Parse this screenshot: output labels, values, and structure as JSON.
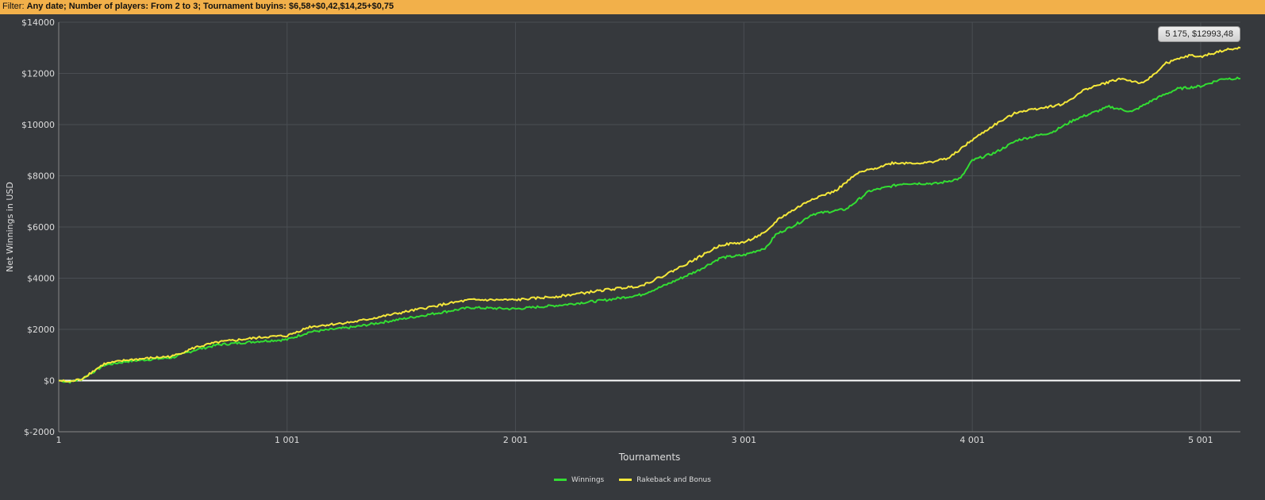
{
  "filter": {
    "label": "Filter:",
    "text": "Any date; Number of players: From 2 to 3; Tournament buyins: $6,58+$0,42,$14,25+$0,75"
  },
  "tooltip": "5 175, $12993,48",
  "chart_data": {
    "type": "line",
    "xlabel": "Tournaments",
    "ylabel": "Net Winnings in USD",
    "xlim": [
      1,
      5175
    ],
    "ylim": [
      -2000,
      14000
    ],
    "xticks": [
      {
        "v": 1,
        "label": "1"
      },
      {
        "v": 1001,
        "label": "1 001"
      },
      {
        "v": 2001,
        "label": "2 001"
      },
      {
        "v": 3001,
        "label": "3 001"
      },
      {
        "v": 4001,
        "label": "4 001"
      },
      {
        "v": 5001,
        "label": "5 001"
      }
    ],
    "yticks": [
      {
        "v": -2000,
        "label": "$-2000"
      },
      {
        "v": 0,
        "label": "$0"
      },
      {
        "v": 2000,
        "label": "$2000"
      },
      {
        "v": 4000,
        "label": "$4000"
      },
      {
        "v": 6000,
        "label": "$6000"
      },
      {
        "v": 8000,
        "label": "$8000"
      },
      {
        "v": 10000,
        "label": "$10000"
      },
      {
        "v": 12000,
        "label": "$12000"
      },
      {
        "v": 14000,
        "label": "$14000"
      }
    ],
    "grid": true,
    "legend_position": "bottom",
    "series": [
      {
        "name": "Winnings",
        "color": "#33dd33",
        "x": [
          1,
          50,
          100,
          200,
          300,
          500,
          600,
          700,
          900,
          1001,
          1100,
          1300,
          1500,
          1700,
          1800,
          2001,
          2200,
          2400,
          2550,
          2650,
          2800,
          2900,
          3001,
          3100,
          3140,
          3250,
          3300,
          3450,
          3550,
          3700,
          3850,
          3950,
          4001,
          4100,
          4200,
          4350,
          4450,
          4600,
          4700,
          4800,
          4900,
          5001,
          5100,
          5175
        ],
        "y": [
          0,
          -50,
          50,
          600,
          750,
          900,
          1200,
          1400,
          1550,
          1600,
          1900,
          2100,
          2400,
          2700,
          2850,
          2800,
          2950,
          3150,
          3350,
          3700,
          4300,
          4800,
          4900,
          5200,
          5700,
          6200,
          6500,
          6700,
          7400,
          7700,
          7700,
          7900,
          8600,
          8900,
          9400,
          9700,
          10200,
          10700,
          10500,
          11000,
          11400,
          11500,
          11800,
          11800
        ]
      },
      {
        "name": "Rakeback and Bonus",
        "color": "#f5e83a",
        "x": [
          1,
          50,
          100,
          200,
          300,
          500,
          600,
          700,
          900,
          1001,
          1100,
          1300,
          1500,
          1700,
          1800,
          2001,
          2200,
          2400,
          2550,
          2650,
          2800,
          2900,
          3001,
          3100,
          3150,
          3300,
          3400,
          3500,
          3650,
          3800,
          3900,
          4001,
          4100,
          4200,
          4400,
          4500,
          4650,
          4750,
          4850,
          4950,
          5001,
          5100,
          5175
        ],
        "y": [
          0,
          -50,
          60,
          650,
          800,
          950,
          1300,
          1500,
          1700,
          1750,
          2100,
          2300,
          2650,
          3000,
          3150,
          3150,
          3300,
          3550,
          3700,
          4100,
          4800,
          5300,
          5400,
          5800,
          6300,
          7100,
          7400,
          8100,
          8500,
          8500,
          8700,
          9400,
          10000,
          10500,
          10800,
          11400,
          11800,
          11600,
          12400,
          12700,
          12650,
          12900,
          12993
        ]
      }
    ]
  }
}
